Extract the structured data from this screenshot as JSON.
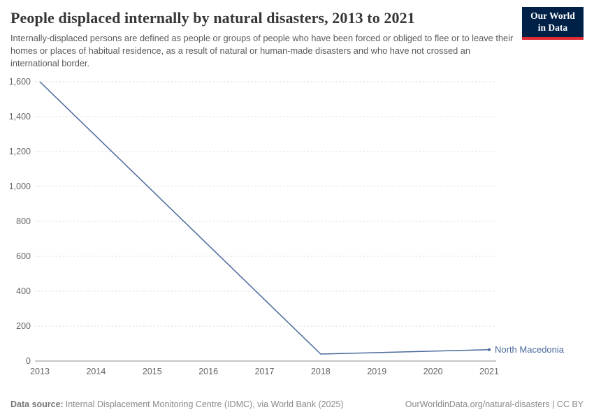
{
  "header": {
    "title": "People displaced internally by natural disasters, 2013 to 2021",
    "subtitle": "Internally-displaced persons are defined as people or groups of people who have been forced or obliged to flee or to leave their homes or places of habitual residence, as a result of natural or human-made disasters and who have not crossed an international border."
  },
  "logo": {
    "line1": "Our World",
    "line2": "in Data",
    "bg_color": "#002147",
    "accent_color": "#E02B35"
  },
  "chart_data": {
    "type": "line",
    "title": "People displaced internally by natural disasters, 2013 to 2021",
    "xlabel": "",
    "ylabel": "",
    "xlim": [
      2013,
      2021
    ],
    "ylim": [
      0,
      1600
    ],
    "xticks": [
      2013,
      2014,
      2015,
      2016,
      2017,
      2018,
      2019,
      2020,
      2021
    ],
    "ytick_values": [
      0,
      200,
      400,
      600,
      800,
      1000,
      1200,
      1400,
      1600
    ],
    "ytick_labels": [
      "0",
      "200",
      "400",
      "600",
      "800",
      "1,000",
      "1,200",
      "1,400",
      "1,600"
    ],
    "grid": "horizontal-dashed",
    "legend": "end-of-line-label",
    "series": [
      {
        "name": "North Macedonia",
        "color": "#4C6A9C",
        "points": [
          [
            2013,
            1600
          ],
          [
            2018,
            40
          ],
          [
            2021,
            65
          ]
        ]
      }
    ]
  },
  "footer": {
    "source_label": "Data source:",
    "source_text": "Internal Displacement Monitoring Centre (IDMC), via World Bank (2025)",
    "right_text": "OurWorldinData.org/natural-disasters | CC BY"
  }
}
